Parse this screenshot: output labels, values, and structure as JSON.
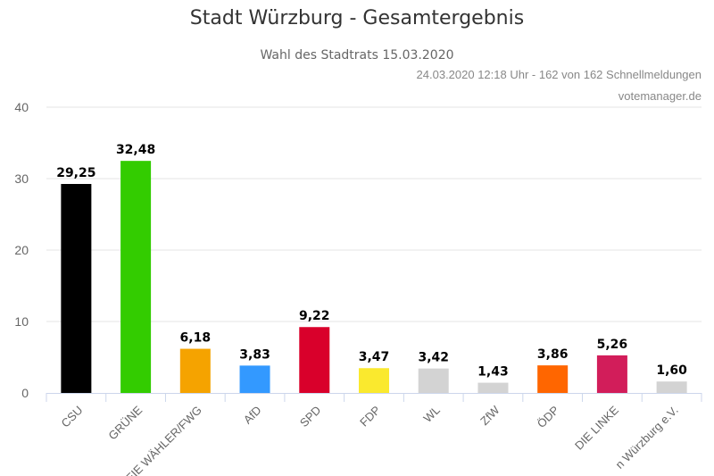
{
  "chart_data": {
    "type": "bar",
    "title": "Stadt Würzburg - Gesamtergebnis",
    "subtitle": "Wahl des Stadtrats 15.03.2020",
    "categories": [
      "CSU",
      "GRÜNE",
      "FREIE WÄHLER/FWG",
      "AfD",
      "SPD",
      "FDP",
      "WL",
      "ZfW",
      "ÖDP",
      "DIE LINKE",
      "n Würzburg e.V."
    ],
    "values": [
      29.25,
      32.48,
      6.18,
      3.83,
      9.22,
      3.47,
      3.42,
      1.43,
      3.86,
      5.26,
      1.6
    ],
    "value_labels": [
      "29,25",
      "32,48",
      "6,18",
      "3,83",
      "9,22",
      "3,47",
      "3,42",
      "1,43",
      "3,86",
      "5,26",
      "1,60"
    ],
    "colors": [
      "#000000",
      "#33cc00",
      "#f5a300",
      "#3399ff",
      "#d9002b",
      "#fae92e",
      "#d3d3d3",
      "#d3d3d3",
      "#ff6600",
      "#d21d5a",
      "#d3d3d3"
    ],
    "ylim": [
      0,
      40
    ],
    "yticks": [
      0,
      10,
      20,
      30,
      40
    ],
    "grid": true,
    "xlabel": "",
    "ylabel": ""
  },
  "footer": {
    "status": "24.03.2020 12:18 Uhr - 162 von 162 Schnellmeldungen",
    "source": "votemanager.de"
  }
}
